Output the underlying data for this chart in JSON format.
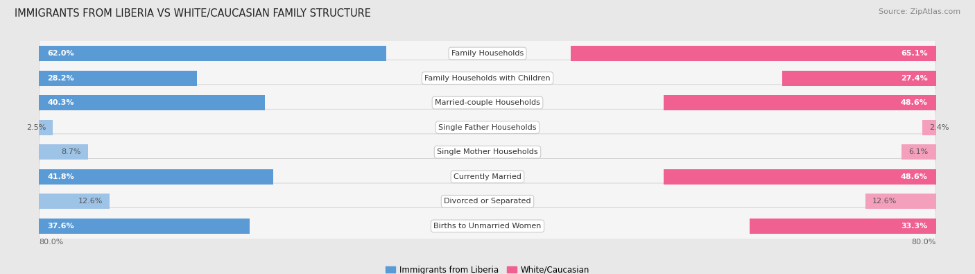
{
  "title": "IMMIGRANTS FROM LIBERIA VS WHITE/CAUCASIAN FAMILY STRUCTURE",
  "source": "Source: ZipAtlas.com",
  "categories": [
    "Family Households",
    "Family Households with Children",
    "Married-couple Households",
    "Single Father Households",
    "Single Mother Households",
    "Currently Married",
    "Divorced or Separated",
    "Births to Unmarried Women"
  ],
  "liberia_values": [
    62.0,
    28.2,
    40.3,
    2.5,
    8.7,
    41.8,
    12.6,
    37.6
  ],
  "white_values": [
    65.1,
    27.4,
    48.6,
    2.4,
    6.1,
    48.6,
    12.6,
    33.3
  ],
  "liberia_color_strong": "#5b9bd5",
  "liberia_color_light": "#9dc3e6",
  "white_color_strong": "#f06090",
  "white_color_light": "#f4a0bc",
  "axis_max": 80.0,
  "background_color": "#e8e8e8",
  "row_color": "#f5f5f5",
  "row_border": "#d0d0d0",
  "legend_label_liberia": "Immigrants from Liberia",
  "legend_label_white": "White/Caucasian",
  "strong_threshold": 20.0,
  "title_fontsize": 10.5,
  "source_fontsize": 8,
  "bar_label_fontsize": 8,
  "cat_label_fontsize": 8
}
